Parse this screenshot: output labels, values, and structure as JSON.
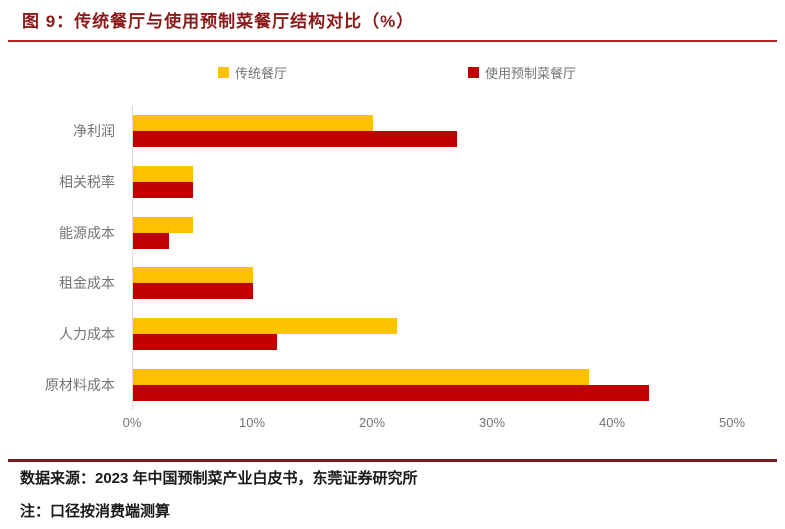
{
  "title": "图 9：传统餐厅与使用预制菜餐厅结构对比（%）",
  "colors": {
    "traditional": "#FFC000",
    "premade": "#C00000",
    "title": "#8B1A1A",
    "rule": "#B22222",
    "footer_rule": "#7B1A1A",
    "axis": "#D9D9D9",
    "label": "#737373",
    "footer_text": "#1A1A1A"
  },
  "legend": [
    {
      "label": "传统餐厅",
      "color": "#FFC000"
    },
    {
      "label": "使用预制菜餐厅",
      "color": "#C00000"
    }
  ],
  "chart_data": {
    "type": "bar",
    "orientation": "horizontal",
    "title": "图 9：传统餐厅与使用预制菜餐厅结构对比（%）",
    "categories": [
      "净利润",
      "相关税率",
      "能源成本",
      "租金成本",
      "人力成本",
      "原材料成本"
    ],
    "series": [
      {
        "name": "传统餐厅",
        "color": "#FFC000",
        "values": [
          20,
          5,
          5,
          10,
          22,
          38
        ]
      },
      {
        "name": "使用预制菜餐厅",
        "color": "#C00000",
        "values": [
          27,
          5,
          3,
          10,
          12,
          43
        ]
      }
    ],
    "xlim": [
      0,
      50
    ],
    "x_ticks": [
      0,
      10,
      20,
      30,
      40,
      50
    ],
    "x_tick_labels": [
      "0%",
      "10%",
      "20%",
      "30%",
      "40%",
      "50%"
    ],
    "xlabel": "",
    "ylabel": "",
    "grid": false,
    "legend_position": "top"
  },
  "footer": {
    "source": "数据来源：2023 年中国预制菜产业白皮书，东莞证券研究所",
    "note": "注：口径按消费端测算"
  }
}
